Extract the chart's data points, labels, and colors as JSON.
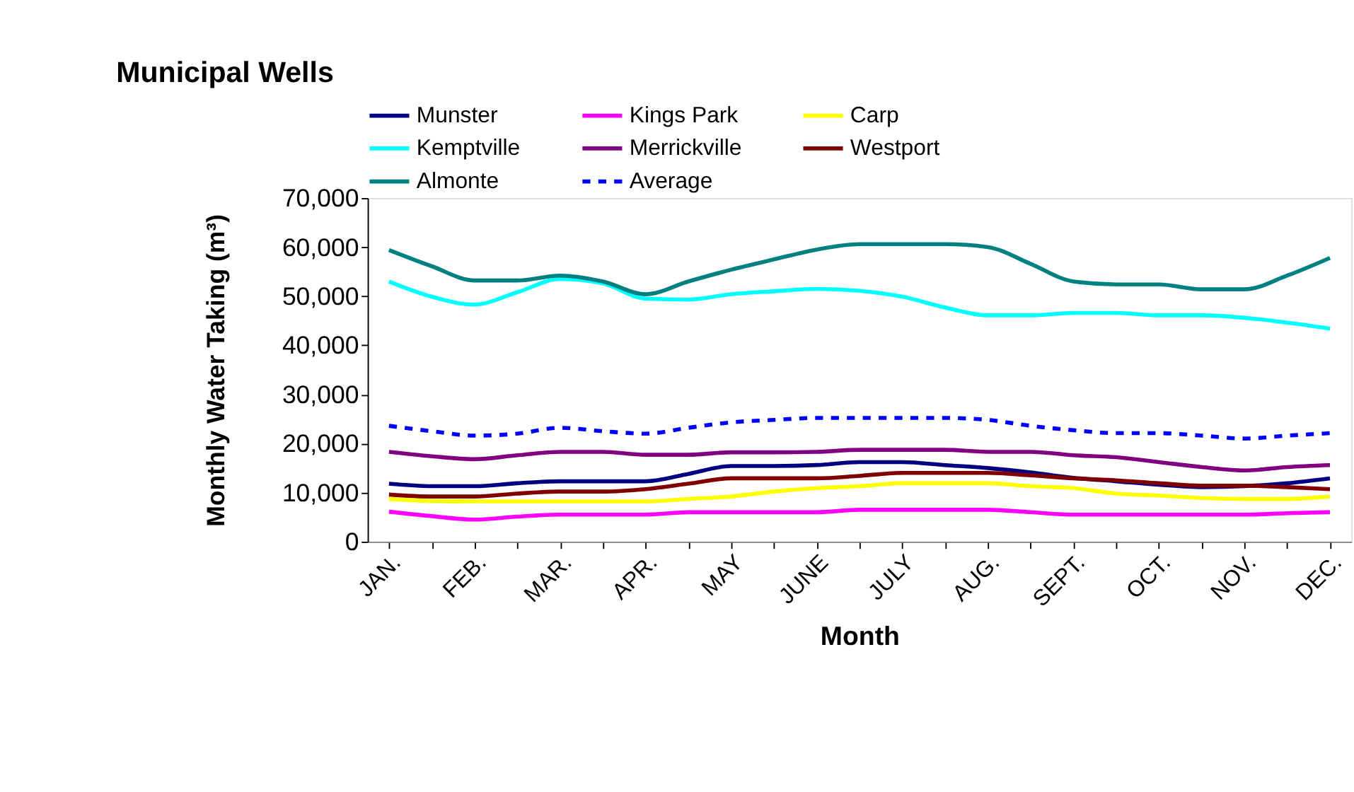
{
  "chart_data": {
    "type": "line",
    "title": "Municipal Wells",
    "xlabel": "Month",
    "ylabel": "Monthly Water Taking (m³)",
    "categories": [
      "JAN.",
      null,
      "FEB.",
      null,
      "MAR.",
      null,
      "APR.",
      null,
      "MAY",
      null,
      "JUNE",
      null,
      "JULY",
      null,
      "AUG.",
      null,
      "SEPT.",
      null,
      "OCT.",
      null,
      "NOV.",
      null,
      "DEC."
    ],
    "series": [
      {
        "name": "Munster",
        "color": "#000080",
        "values": [
          11800,
          11300,
          11300,
          11900,
          12300,
          12300,
          12300,
          13800,
          15400,
          15400,
          15600,
          16200,
          16200,
          15600,
          15000,
          14100,
          13000,
          12300,
          11600,
          11100,
          11300,
          11900,
          12900
        ]
      },
      {
        "name": "Kings Park",
        "color": "#ff00ff",
        "values": [
          6100,
          5200,
          4500,
          5100,
          5500,
          5500,
          5500,
          6000,
          6000,
          6000,
          6000,
          6500,
          6500,
          6500,
          6500,
          6000,
          5500,
          5500,
          5500,
          5500,
          5500,
          5800,
          6000
        ]
      },
      {
        "name": "Carp",
        "color": "#ffff00",
        "values": [
          8700,
          8300,
          8200,
          8200,
          8200,
          8200,
          8200,
          8700,
          9200,
          10200,
          10900,
          11300,
          11900,
          11900,
          11900,
          11300,
          10900,
          9800,
          9400,
          8900,
          8700,
          8700,
          9200
        ]
      },
      {
        "name": "Kemptville",
        "color": "#00ffff",
        "values": [
          53000,
          49900,
          48300,
          50800,
          53500,
          52600,
          49500,
          49300,
          50400,
          51000,
          51500,
          51100,
          49900,
          47700,
          46100,
          46100,
          46600,
          46600,
          46100,
          46100,
          45600,
          44600,
          43400
        ]
      },
      {
        "name": "Merrickville",
        "color": "#800080",
        "values": [
          18300,
          17400,
          16800,
          17600,
          18300,
          18300,
          17700,
          17700,
          18200,
          18200,
          18300,
          18700,
          18700,
          18700,
          18300,
          18300,
          17600,
          17200,
          16200,
          15200,
          14500,
          15200,
          15600
        ]
      },
      {
        "name": "Westport",
        "color": "#800000",
        "values": [
          9600,
          9200,
          9200,
          9800,
          10200,
          10200,
          10700,
          11800,
          12900,
          12900,
          12900,
          13400,
          14000,
          14000,
          14000,
          13500,
          12900,
          12500,
          11900,
          11400,
          11400,
          11100,
          10700
        ]
      },
      {
        "name": "Almonte",
        "color": "#008080",
        "values": [
          59400,
          56100,
          53200,
          53200,
          54200,
          53000,
          50400,
          53000,
          55400,
          57500,
          59500,
          60600,
          60600,
          60600,
          60000,
          56600,
          53000,
          52400,
          52400,
          51400,
          51400,
          54200,
          57800
        ]
      },
      {
        "name": "Average",
        "color": "#0000ff",
        "line_style": "dashed",
        "values": [
          23600,
          22500,
          21600,
          22000,
          23200,
          22500,
          22000,
          23200,
          24300,
          24800,
          25200,
          25200,
          25200,
          25200,
          24800,
          23600,
          22700,
          22100,
          22100,
          21600,
          21000,
          21600,
          22100
        ]
      }
    ],
    "ylim": [
      0,
      70000
    ],
    "yticks": [
      0,
      {
        "value": 10000,
        "label": "10,000"
      },
      {
        "value": 20000,
        "label": "20,000"
      },
      {
        "value": 30000,
        "label": "30,000"
      },
      {
        "value": 40000,
        "label": "40,000"
      },
      {
        "value": 50000,
        "label": "50,000"
      },
      {
        "value": 60000,
        "label": "60,000"
      },
      {
        "value": 70000,
        "label": "70,000"
      }
    ],
    "legend": "top",
    "grid": false,
    "line_style": "solid"
  }
}
